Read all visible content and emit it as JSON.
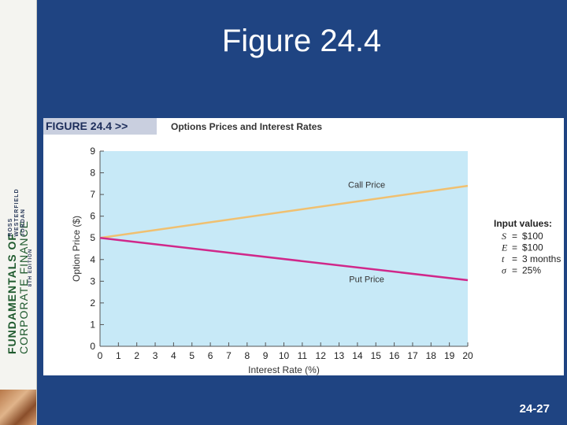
{
  "slide": {
    "title": "Figure 24.4",
    "page_number": "24-27"
  },
  "spine": {
    "line1": "FUNDAMENTALS OF",
    "line2": "CORPORATE FINANCE",
    "authors": [
      "ROSS",
      "WESTERFIELD",
      "JORDAN"
    ],
    "edition": "8TH EDITION"
  },
  "figure": {
    "label": "FIGURE 24.4 >>",
    "caption": "Options Prices and Interest Rates"
  },
  "colors": {
    "background": "#1f4482",
    "plot_area": "#c7e9f7",
    "call_line": "#f0c070",
    "put_line": "#d0288a"
  },
  "chart_data": {
    "type": "line",
    "title": "Options Prices and Interest Rates",
    "xlabel": "Interest Rate (%)",
    "ylabel": "Option Price ($)",
    "xlim": [
      0,
      20
    ],
    "ylim": [
      0,
      9
    ],
    "x_ticks": [
      "0",
      "1",
      "2",
      "3",
      "4",
      "5",
      "6",
      "7",
      "8",
      "9",
      "10",
      "11",
      "12",
      "13",
      "14",
      "15",
      "16",
      "17",
      "18",
      "19",
      "20"
    ],
    "y_ticks": [
      "0",
      "1",
      "2",
      "3",
      "4",
      "5",
      "6",
      "7",
      "8",
      "9"
    ],
    "grid": false,
    "series": [
      {
        "name": "Call Price",
        "color": "#f0c070",
        "x": [
          0,
          20
        ],
        "values": [
          5.0,
          7.4
        ]
      },
      {
        "name": "Put Price",
        "color": "#d0288a",
        "x": [
          0,
          20
        ],
        "values": [
          5.0,
          3.05
        ]
      }
    ],
    "inputs": {
      "heading": "Input values:",
      "rows": [
        {
          "symbol": "S",
          "eq": "=",
          "value": "$100"
        },
        {
          "symbol": "E",
          "eq": "=",
          "value": "$100"
        },
        {
          "symbol": "t",
          "eq": "=",
          "value": "3 months"
        },
        {
          "symbol": "σ",
          "eq": "=",
          "value": "25%"
        }
      ]
    }
  }
}
